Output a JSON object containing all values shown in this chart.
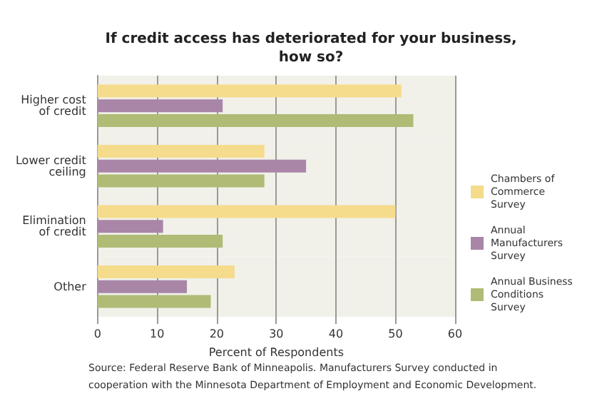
{
  "chart_data": {
    "type": "bar",
    "orientation": "horizontal",
    "title": "If credit access has deteriorated for your business,\nhow so?",
    "categories": [
      "Higher cost\nof credit",
      "Lower credit\nceiling",
      "Elimination\nof credit",
      "Other"
    ],
    "series": [
      {
        "name": "Chambers of\nCommerce\nSurvey",
        "color": "#f5dc8c",
        "values": [
          51,
          28,
          50,
          23
        ]
      },
      {
        "name": "Annual\nManufacturers\nSurvey",
        "color": "#a986a8",
        "values": [
          21,
          35,
          11,
          15
        ]
      },
      {
        "name": "Annual Business\nConditions\nSurvey",
        "color": "#b0bb76",
        "values": [
          53,
          28,
          21,
          19
        ]
      }
    ],
    "xlim": [
      0,
      60
    ],
    "xticks": [
      0,
      10,
      20,
      30,
      40,
      50,
      60
    ],
    "xlabel": "Percent of Respondents",
    "grid": "x",
    "legend": "right",
    "annotations": [
      "Source: Federal Reserve Bank of Minneapolis. Manufacturers Survey conducted in\ncooperation with the Minnesota Department of Employment and Economic Development."
    ]
  }
}
